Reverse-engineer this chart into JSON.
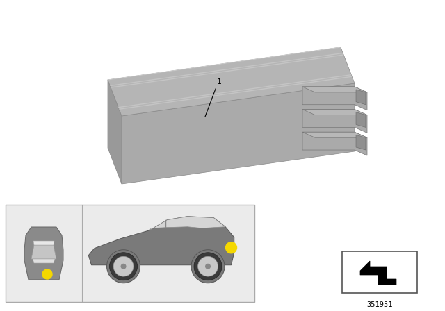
{
  "bg_color": "#ffffff",
  "label_number": "1",
  "part_number": "351951",
  "unit_color_top": "#b5b5b5",
  "unit_color_top_light": "#c8c8c8",
  "unit_color_front": "#aaaaaa",
  "unit_color_side": "#999999",
  "unit_color_connector": "#aaaaaa",
  "unit_color_connector_dark": "#888888",
  "unit_color_groove": "#c0c0c0",
  "bottom_panel_bg": "#ebebeb",
  "bottom_panel_border": "#aaaaaa",
  "car_body_color": "#7a7a7a",
  "car_window_color": "#d8d8d8",
  "car_wheel_dark": "#555555",
  "car_wheel_rim": "#c5c5c5",
  "yellow_dot": "#f5d800",
  "icon_border": "#555555"
}
